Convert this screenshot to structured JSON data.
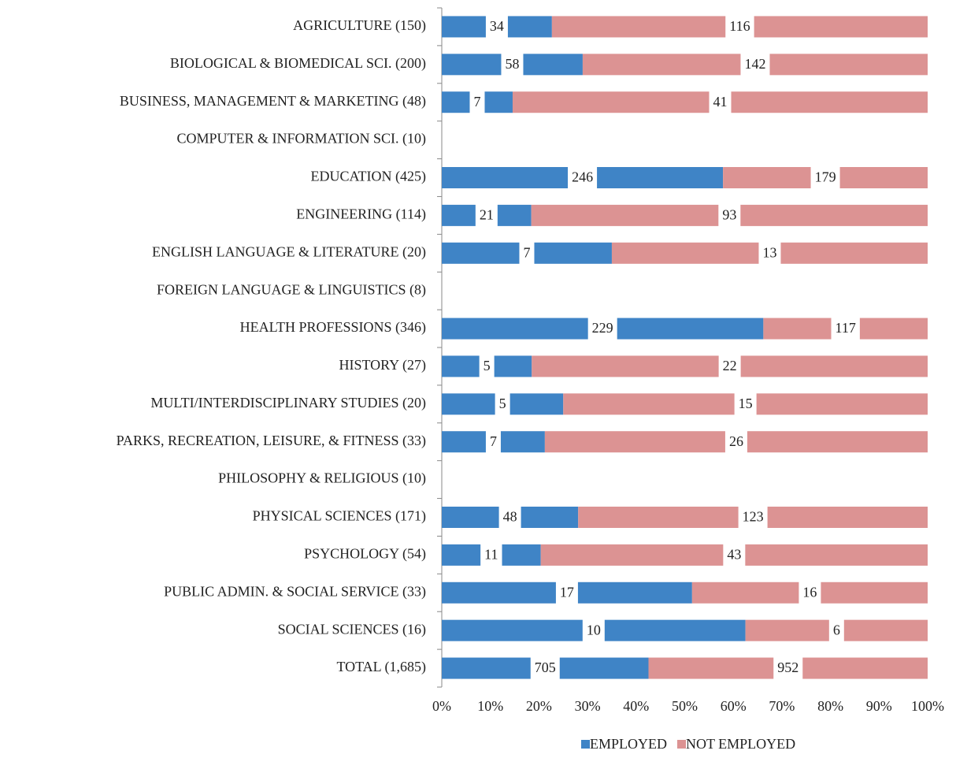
{
  "chart_data": {
    "type": "bar",
    "orientation": "horizontal",
    "stacking": "percent",
    "categories": [
      "AGRICULTURE (150)",
      "BIOLOGICAL & BIOMEDICAL SCI. (200)",
      "BUSINESS, MANAGEMENT & MARKETING (48)",
      "COMPUTER & INFORMATION SCI. (10)",
      "EDUCATION (425)",
      "ENGINEERING (114)",
      "ENGLISH LANGUAGE & LITERATURE (20)",
      "FOREIGN LANGUAGE & LINGUISTICS (8)",
      "HEALTH PROFESSIONS  (346)",
      "HISTORY (27)",
      "MULTI/INTERDISCIPLINARY STUDIES (20)",
      "PARKS, RECREATION, LEISURE, & FITNESS  (33)",
      "PHILOSOPHY & RELIGIOUS  (10)",
      "PHYSICAL SCIENCES (171)",
      "PSYCHOLOGY (54)",
      "PUBLIC ADMIN. & SOCIAL SERVICE (33)",
      "SOCIAL SCIENCES (16)",
      "TOTAL (1,685)"
    ],
    "series": [
      {
        "name": "EMPLOYED",
        "color": "#3f84c6",
        "values": [
          34,
          58,
          7,
          null,
          246,
          21,
          7,
          null,
          229,
          5,
          5,
          7,
          null,
          48,
          11,
          17,
          10,
          705
        ]
      },
      {
        "name": "NOT EMPLOYED",
        "color": "#dc9393",
        "values": [
          116,
          142,
          41,
          null,
          179,
          93,
          13,
          null,
          117,
          22,
          15,
          26,
          null,
          123,
          43,
          16,
          6,
          952
        ]
      }
    ],
    "xlim": [
      0,
      100
    ],
    "xticks": [
      {
        "value": 0,
        "label": "0%"
      },
      {
        "value": 10,
        "label": "10%"
      },
      {
        "value": 20,
        "label": "20%"
      },
      {
        "value": 30,
        "label": "30%"
      },
      {
        "value": 40,
        "label": "40%"
      },
      {
        "value": 50,
        "label": "50%"
      },
      {
        "value": 60,
        "label": "60%"
      },
      {
        "value": 70,
        "label": "70%"
      },
      {
        "value": 80,
        "label": "80%"
      },
      {
        "value": 90,
        "label": "90%"
      },
      {
        "value": 100,
        "label": "100%"
      }
    ],
    "legend": "bottom"
  }
}
